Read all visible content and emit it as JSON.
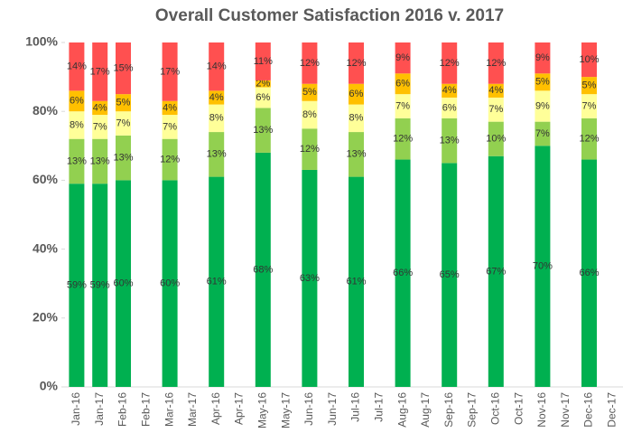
{
  "chart_data": {
    "type": "stacked_bar",
    "title": "Overall Customer Satisfaction 2016 v. 2017",
    "categories": [
      "Jan-16",
      "Jan-17",
      "Feb-16",
      "Feb-17",
      "Mar-16",
      "Mar-17",
      "Apr-16",
      "Apr-17",
      "May-16",
      "May-17",
      "Jun-16",
      "Jun-17",
      "Jul-16",
      "Jul-17",
      "Aug-16",
      "Aug-17",
      "Sep-16",
      "Sep-17",
      "Oct-16",
      "Oct-17",
      "Nov-16",
      "Nov-17",
      "Dec-16",
      "Dec-17"
    ],
    "series": [
      {
        "color": "#00b050",
        "values": [
          59,
          59,
          60,
          null,
          60,
          null,
          61,
          null,
          68,
          null,
          63,
          null,
          61,
          null,
          66,
          null,
          65,
          null,
          67,
          null,
          70,
          null,
          66,
          null
        ],
        "value_labels": [
          "59%",
          "59%",
          "60%",
          null,
          "60%",
          null,
          "61%",
          null,
          "68%",
          null,
          "63%",
          null,
          "61%",
          null,
          "66%",
          null,
          "65%",
          null,
          "67%",
          null,
          "70%",
          null,
          "66%",
          null
        ]
      },
      {
        "color": "#92d050",
        "values": [
          13,
          13,
          13,
          null,
          12,
          null,
          13,
          null,
          13,
          null,
          12,
          null,
          13,
          null,
          12,
          null,
          13,
          null,
          10,
          null,
          7,
          null,
          12,
          null
        ],
        "value_labels": [
          "13%",
          "13%",
          "13%",
          null,
          "12%",
          null,
          "13%",
          null,
          "13%",
          null,
          "12%",
          null,
          "13%",
          null,
          "12%",
          null,
          "13%",
          null,
          "10%",
          null,
          "7%",
          null,
          "12%",
          null
        ]
      },
      {
        "color": "#ffff99",
        "values": [
          8,
          7,
          7,
          null,
          7,
          null,
          8,
          null,
          6,
          null,
          8,
          null,
          8,
          null,
          7,
          null,
          6,
          null,
          7,
          null,
          9,
          null,
          7,
          null
        ],
        "value_labels": [
          "8%",
          "7%",
          "7%",
          null,
          "7%",
          null,
          "8%",
          null,
          "6%",
          null,
          "8%",
          null,
          "8%",
          null,
          "7%",
          null,
          "6%",
          null,
          "7%",
          null,
          "9%",
          null,
          "7%",
          null
        ]
      },
      {
        "color": "#ffc000",
        "values": [
          6,
          4,
          5,
          null,
          4,
          null,
          4,
          null,
          2,
          null,
          5,
          null,
          6,
          null,
          6,
          null,
          4,
          null,
          4,
          null,
          5,
          null,
          5,
          null
        ],
        "value_labels": [
          "6%",
          "4%",
          "5%",
          null,
          "4%",
          null,
          "4%",
          null,
          "2%",
          null,
          "5%",
          null,
          "6%",
          null,
          "6%",
          null,
          "4%",
          null,
          "4%",
          null,
          "5%",
          null,
          "5%",
          null
        ]
      },
      {
        "color": "#ff5050",
        "values": [
          14,
          17,
          15,
          null,
          17,
          null,
          14,
          null,
          11,
          null,
          12,
          null,
          12,
          null,
          9,
          null,
          12,
          null,
          12,
          null,
          9,
          null,
          10,
          null
        ],
        "value_labels": [
          "14%",
          "17%",
          "15%",
          null,
          "17%",
          null,
          "14%",
          null,
          "11%",
          null,
          "12%",
          null,
          "12%",
          null,
          "9%",
          null,
          "12%",
          null,
          "12%",
          null,
          "9%",
          null,
          "10%",
          null
        ]
      }
    ],
    "ylim": [
      0,
      100
    ],
    "yticks": [
      {
        "value": 0,
        "label": "0%"
      },
      {
        "value": 20,
        "label": "20%"
      },
      {
        "value": 40,
        "label": "40%"
      },
      {
        "value": 60,
        "label": "60%"
      },
      {
        "value": 80,
        "label": "80%"
      },
      {
        "value": 100,
        "label": "100%"
      }
    ]
  }
}
